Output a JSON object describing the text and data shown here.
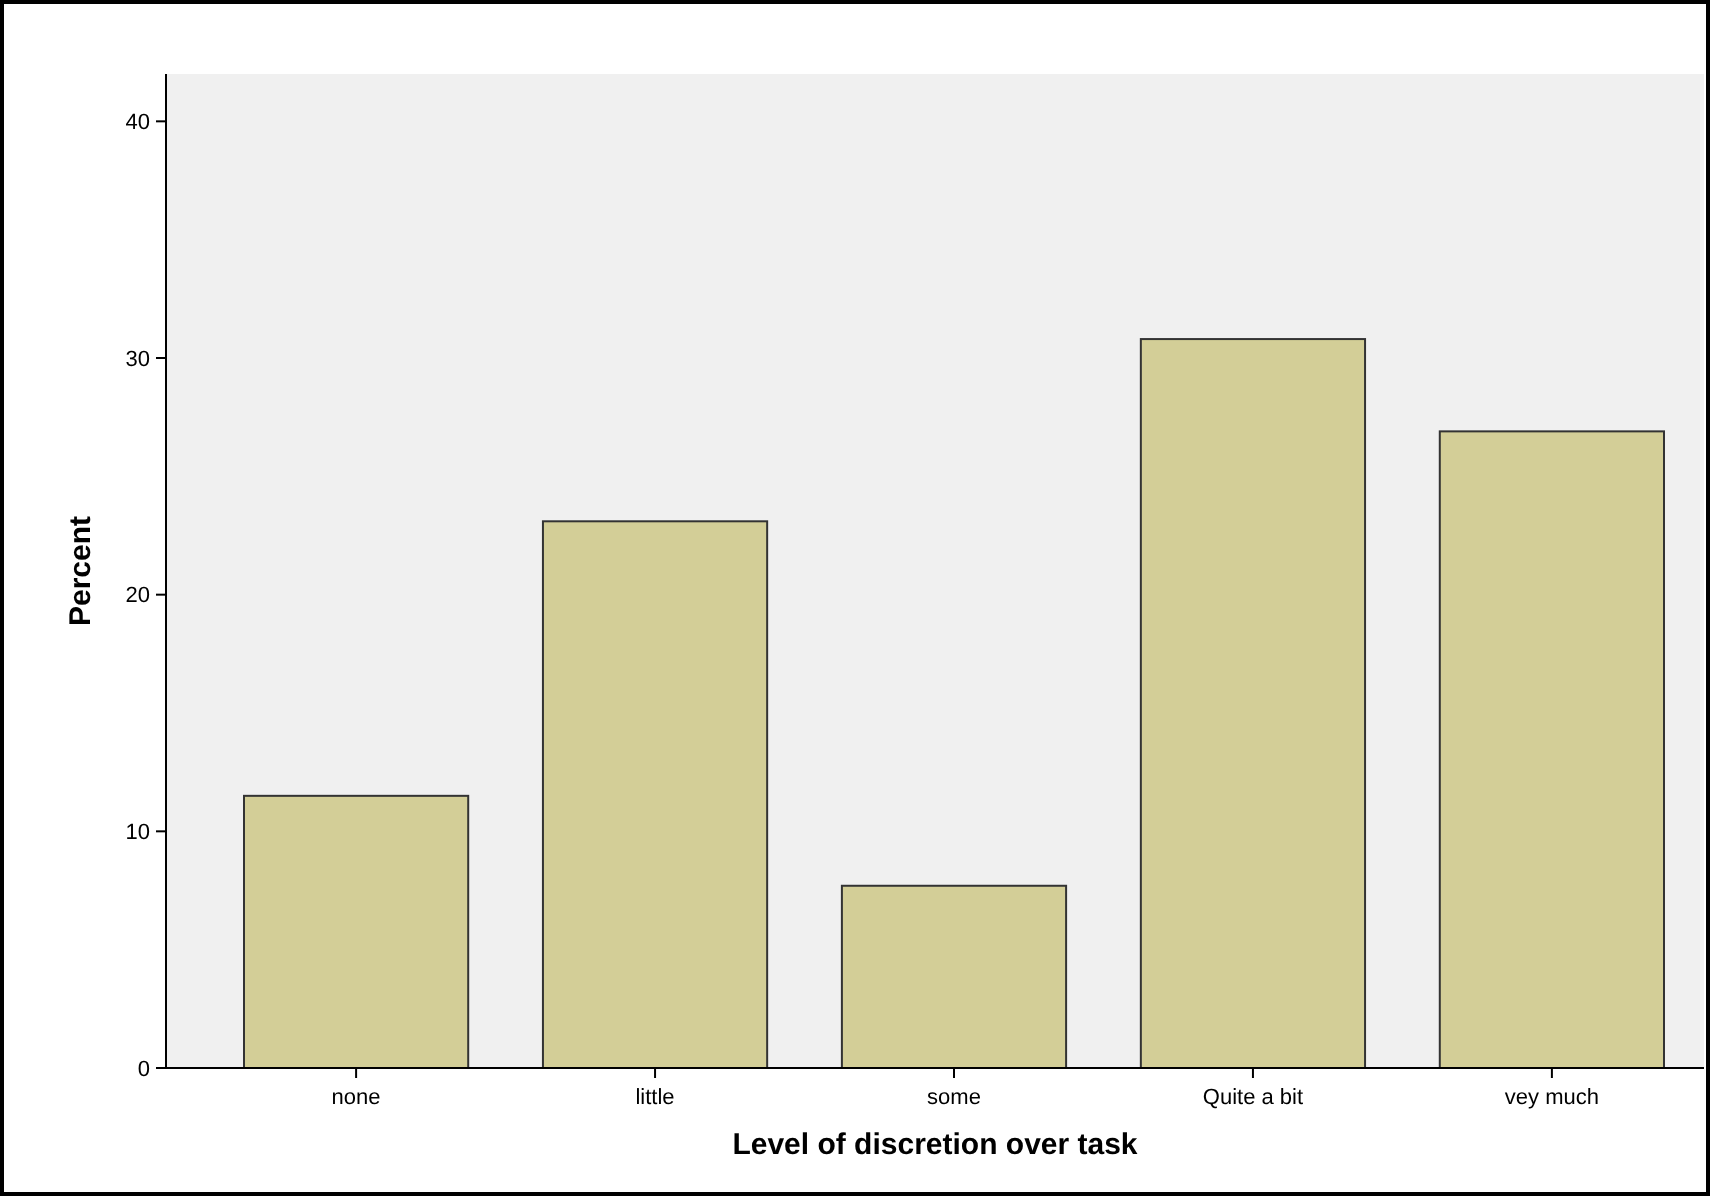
{
  "chart_data": {
    "type": "bar",
    "xlabel": "Level of discretion over task",
    "ylabel": "Percent",
    "categories": [
      "none",
      "little",
      "some",
      "Quite a bit",
      "vey much"
    ],
    "values": [
      11.5,
      23.1,
      7.7,
      30.8,
      26.9
    ],
    "color": "#d3ce97",
    "ylim": [
      0,
      42
    ],
    "yticks": [
      0,
      10,
      20,
      30,
      40
    ],
    "grid": false
  }
}
